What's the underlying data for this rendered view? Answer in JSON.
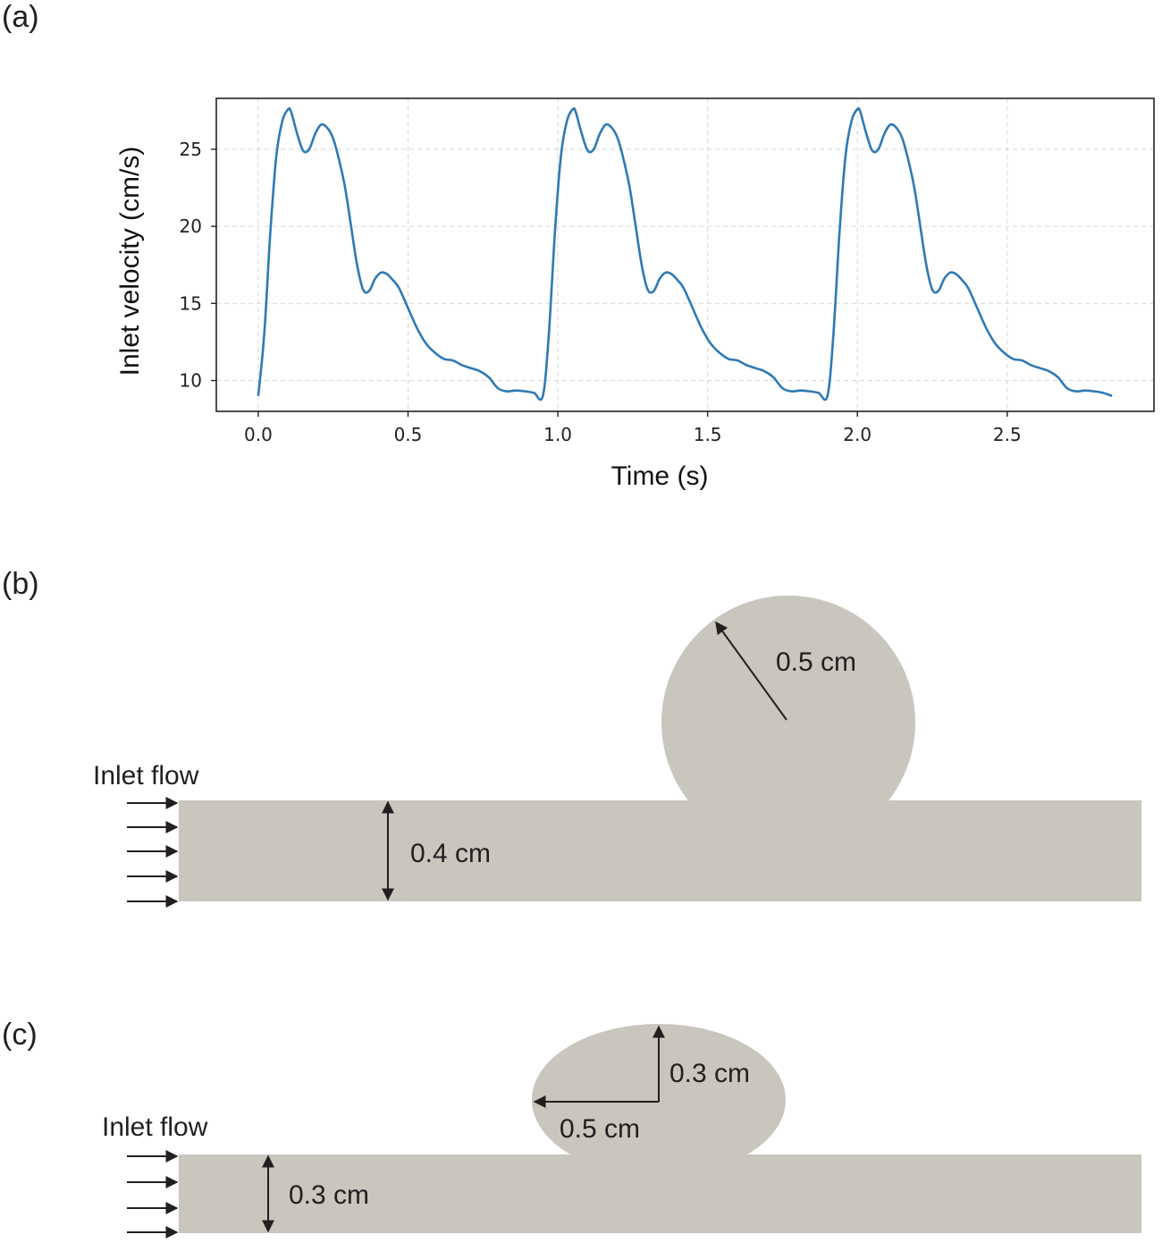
{
  "panels": {
    "a": "(a)",
    "b": "(b)",
    "c": "(c)"
  },
  "chart_data": {
    "type": "line",
    "title": "",
    "xlabel": "Time (s)",
    "ylabel": "Inlet velocity (cm/s)",
    "xlim": [
      -0.14,
      2.99
    ],
    "ylim": [
      8.0,
      28.3
    ],
    "xticks": [
      0.0,
      0.5,
      1.0,
      1.5,
      2.0,
      2.5
    ],
    "xtick_labels": [
      "0.0",
      "0.5",
      "1.0",
      "1.5",
      "2.0",
      "2.5"
    ],
    "yticks": [
      10,
      15,
      20,
      25
    ],
    "ytick_labels": [
      "10",
      "15",
      "20",
      "25"
    ],
    "grid": true,
    "line_color": "#2e7ab5",
    "period": 0.95,
    "cycles": 3,
    "series": [
      {
        "name": "Inlet velocity",
        "cycle_shape": {
          "t": [
            0.0,
            0.02,
            0.04,
            0.06,
            0.08,
            0.1,
            0.11,
            0.13,
            0.15,
            0.17,
            0.19,
            0.21,
            0.23,
            0.25,
            0.27,
            0.29,
            0.31,
            0.33,
            0.35,
            0.37,
            0.39,
            0.41,
            0.43,
            0.45,
            0.47,
            0.5,
            0.53,
            0.56,
            0.59,
            0.62,
            0.65,
            0.68,
            0.71,
            0.74,
            0.77,
            0.8,
            0.83,
            0.86,
            0.89,
            0.92,
            0.95
          ],
          "v": [
            9.0,
            13.0,
            19.5,
            24.5,
            26.8,
            27.6,
            27.4,
            26.0,
            24.9,
            25.0,
            26.0,
            26.6,
            26.4,
            25.7,
            24.3,
            22.5,
            20.0,
            17.5,
            15.9,
            15.8,
            16.6,
            17.0,
            16.9,
            16.5,
            16.0,
            14.7,
            13.4,
            12.4,
            11.8,
            11.4,
            11.3,
            11.0,
            10.8,
            10.6,
            10.2,
            9.5,
            9.3,
            9.35,
            9.3,
            9.2,
            9.0
          ]
        }
      }
    ]
  },
  "diagram_b": {
    "inlet_label": "Inlet flow",
    "channel_label": "0.4 cm",
    "radius_label": "0.5 cm"
  },
  "diagram_c": {
    "inlet_label": "Inlet flow",
    "channel_label": "0.3 cm",
    "vertical_label": "0.3 cm",
    "horizontal_label": "0.5 cm"
  }
}
